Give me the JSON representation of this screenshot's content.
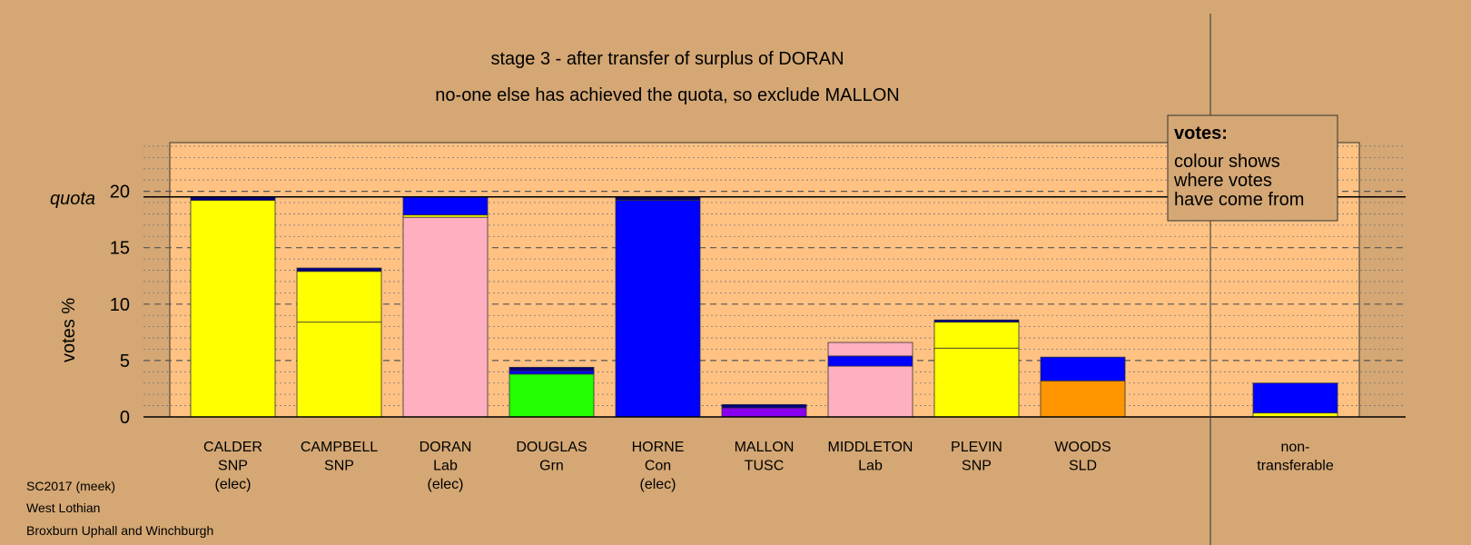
{
  "chart_data": {
    "type": "bar",
    "title": "stage 3 - after transfer of surplus of DORAN",
    "subtitle": "no-one else has achieved the quota, so exclude MALLON",
    "ylabel": "votes %",
    "quota_label": "quota",
    "quota": 19.5,
    "ylim": [
      0,
      24.5
    ],
    "yticks": [
      0,
      5,
      10,
      15,
      20
    ],
    "grid": true,
    "legend": {
      "heading": "votes:",
      "lines": [
        "colour shows",
        "where votes",
        "have come from"
      ]
    },
    "candidates": [
      {
        "name": "CALDER",
        "party": "SNP",
        "status": "(elec)",
        "segments": [
          {
            "value": 19.2,
            "color": "#ffff00"
          },
          {
            "value": 0.3,
            "color": "#000080"
          }
        ]
      },
      {
        "name": "CAMPBELL",
        "party": "SNP",
        "status": "",
        "segments": [
          {
            "value": 8.4,
            "color": "#ffff00"
          },
          {
            "value": 4.5,
            "color": "#ffff00"
          },
          {
            "value": 0.3,
            "color": "#000080"
          }
        ]
      },
      {
        "name": "DORAN",
        "party": "Lab",
        "status": "(elec)",
        "segments": [
          {
            "value": 17.7,
            "color": "#ffb0c0"
          },
          {
            "value": 0.2,
            "color": "#ffff00"
          },
          {
            "value": 1.6,
            "color": "#0000ff"
          }
        ]
      },
      {
        "name": "DOUGLAS",
        "party": "Grn",
        "status": "",
        "segments": [
          {
            "value": 3.8,
            "color": "#22ff00"
          },
          {
            "value": 0.3,
            "color": "#0000ff"
          },
          {
            "value": 0.3,
            "color": "#000080"
          }
        ]
      },
      {
        "name": "HORNE",
        "party": "Con",
        "status": "(elec)",
        "segments": [
          {
            "value": 19.2,
            "color": "#0000ff"
          },
          {
            "value": 0.3,
            "color": "#000080"
          }
        ]
      },
      {
        "name": "MALLON",
        "party": "TUSC",
        "status": "",
        "segments": [
          {
            "value": 0.8,
            "color": "#8800ee"
          },
          {
            "value": 0.3,
            "color": "#000080"
          }
        ]
      },
      {
        "name": "MIDDLETON",
        "party": "Lab",
        "status": "",
        "segments": [
          {
            "value": 4.5,
            "color": "#ffb0c0"
          },
          {
            "value": 0.9,
            "color": "#0000ff"
          },
          {
            "value": 1.2,
            "color": "#ffb0c0"
          }
        ]
      },
      {
        "name": "PLEVIN",
        "party": "SNP",
        "status": "",
        "segments": [
          {
            "value": 6.1,
            "color": "#ffff00"
          },
          {
            "value": 2.3,
            "color": "#ffff00"
          },
          {
            "value": 0.2,
            "color": "#000080"
          }
        ]
      },
      {
        "name": "WOODS",
        "party": "SLD",
        "status": "",
        "segments": [
          {
            "value": 3.2,
            "color": "#ff9600"
          },
          {
            "value": 2.1,
            "color": "#0000ff"
          }
        ]
      }
    ],
    "nontransferable": {
      "label_lines": [
        "non-",
        "transferable"
      ],
      "segments": [
        {
          "value": 0.35,
          "color": "#ffff00"
        },
        {
          "value": 2.65,
          "color": "#0000ff"
        }
      ]
    }
  },
  "footer": [
    "SC2017 (meek)",
    "West Lothian",
    "Broxburn Uphall and Winchburgh"
  ]
}
